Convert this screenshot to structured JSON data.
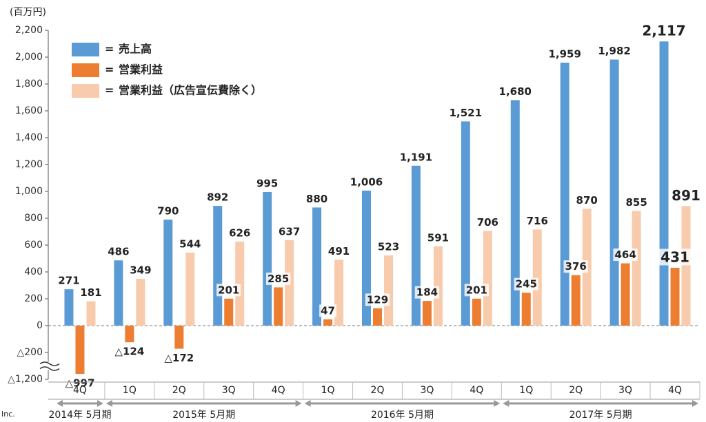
{
  "chart_data": {
    "type": "bar",
    "unit_label": "(百万円)",
    "legend_separator": "=",
    "categories": [
      "4Q",
      "1Q",
      "2Q",
      "3Q",
      "4Q",
      "1Q",
      "2Q",
      "3Q",
      "4Q",
      "1Q",
      "2Q",
      "3Q",
      "4Q"
    ],
    "fiscal_years": [
      {
        "label": "2014年 5月期",
        "count": 1
      },
      {
        "label": "2015年 5月期",
        "count": 4
      },
      {
        "label": "2016年 5月期",
        "count": 4
      },
      {
        "label": "2017年 5月期",
        "count": 4
      }
    ],
    "series": [
      {
        "name": "売上高",
        "color": "#5b9bd5",
        "values": [
          271,
          486,
          790,
          892,
          995,
          880,
          1006,
          1191,
          1521,
          1680,
          1959,
          1982,
          2117
        ],
        "value_labels": [
          "271",
          "486",
          "790",
          "892",
          "995",
          "880",
          "1,006",
          "1,191",
          "1,521",
          "1,680",
          "1,959",
          "1,982",
          "2,117"
        ]
      },
      {
        "name": "営業利益",
        "color": "#ed7d31",
        "values": [
          -997,
          -124,
          -172,
          201,
          285,
          47,
          129,
          184,
          201,
          245,
          376,
          464,
          431
        ],
        "value_labels": [
          "△997",
          "△124",
          "△172",
          "201",
          "285",
          "47",
          "129",
          "184",
          "201",
          "245",
          "376",
          "464",
          "431"
        ]
      },
      {
        "name": "営業利益（広告宣伝費除く）",
        "color": "#f8cbad",
        "values": [
          181,
          349,
          544,
          626,
          637,
          491,
          523,
          591,
          706,
          716,
          870,
          855,
          891
        ],
        "value_labels": [
          "181",
          "349",
          "544",
          "626",
          "637",
          "491",
          "523",
          "591",
          "706",
          "716",
          "870",
          "855",
          "891"
        ]
      }
    ],
    "ylim": [
      -1200,
      2200
    ],
    "yticks": [
      {
        "value": -1200,
        "label": "△1,200"
      },
      {
        "value": -200,
        "label": "△200"
      },
      0,
      200,
      400,
      600,
      800,
      {
        "value": 1000,
        "label": "1,000"
      },
      {
        "value": 1200,
        "label": "1,200"
      },
      {
        "value": 1400,
        "label": "1,400"
      },
      {
        "value": 1600,
        "label": "1,600"
      },
      {
        "value": 1800,
        "label": "1,800"
      },
      {
        "value": 2000,
        "label": "2,000"
      },
      {
        "value": 2200,
        "label": "2,200"
      }
    ],
    "y_axis_break": true,
    "grid": false,
    "legend": "upper left",
    "footer": "Inc."
  }
}
